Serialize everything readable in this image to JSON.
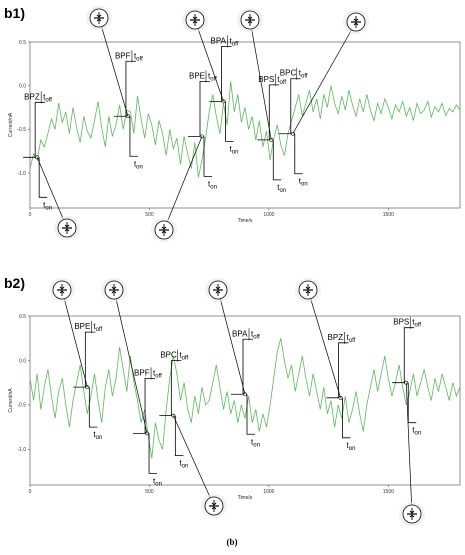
{
  "figure_caption": "(b)",
  "chart_data": [
    {
      "type": "line",
      "panel_label": "b1)",
      "xlabel": "Time/s",
      "ylabel": "Current/nA",
      "xlim": [
        0,
        1800
      ],
      "ylim": [
        -1.4,
        0.5
      ],
      "xticks": [
        0,
        500,
        1000,
        1500
      ],
      "yticks": [
        0.5,
        0.0,
        -0.5,
        -1.0
      ],
      "xtick_labels": [
        "0",
        "500",
        "1000",
        "1500"
      ],
      "ytick_labels": [
        "0.5",
        "0.0",
        "-0.5",
        "-1.0"
      ],
      "line_color": "#5cb85c",
      "series": [
        {
          "x": [
            0,
            15,
            30,
            45,
            60,
            75,
            90,
            105,
            120,
            135,
            150,
            165,
            180,
            195,
            210,
            225,
            240,
            255,
            270,
            285,
            300,
            315,
            330,
            345,
            360,
            375,
            390,
            405,
            420,
            435,
            450,
            465,
            480,
            495,
            510,
            525,
            540,
            555,
            570,
            585,
            600,
            615,
            630,
            645,
            660,
            675,
            690,
            705,
            720,
            735,
            750,
            765,
            780,
            795,
            810,
            825,
            840,
            855,
            870,
            885,
            900,
            915,
            930,
            945,
            960,
            975,
            990,
            1005,
            1020,
            1035,
            1050,
            1065,
            1080,
            1095,
            1110,
            1125,
            1140,
            1155,
            1170,
            1185,
            1200,
            1215,
            1230,
            1245,
            1260,
            1275,
            1290,
            1305,
            1320,
            1335,
            1350,
            1365,
            1380,
            1395,
            1410,
            1425,
            1440,
            1455,
            1470,
            1485,
            1500,
            1515,
            1530,
            1545,
            1560,
            1575,
            1590,
            1605,
            1620,
            1635,
            1650,
            1665,
            1680,
            1695,
            1710,
            1725,
            1740,
            1755,
            1770,
            1785,
            1800
          ],
          "y": [
            -0.95,
            -0.78,
            -0.85,
            -0.62,
            -0.7,
            -0.55,
            -0.38,
            -0.5,
            -0.2,
            -0.42,
            -0.3,
            -0.55,
            -0.25,
            -0.48,
            -0.65,
            -0.35,
            -0.52,
            -0.6,
            -0.4,
            -0.18,
            -0.48,
            -0.7,
            -0.35,
            -0.58,
            -0.45,
            -0.22,
            -0.5,
            -0.28,
            -0.3,
            -0.55,
            -0.12,
            -0.38,
            -0.6,
            -0.32,
            -0.45,
            -0.68,
            -0.4,
            -0.55,
            -0.8,
            -0.5,
            -0.72,
            -0.6,
            -0.9,
            -0.58,
            -0.78,
            -0.95,
            -0.65,
            -1.05,
            -0.85,
            -0.6,
            -0.3,
            -0.1,
            -0.35,
            -0.55,
            -0.2,
            -0.45,
            0.05,
            -0.3,
            -0.1,
            -0.42,
            -0.25,
            -0.5,
            -0.35,
            -0.62,
            -0.4,
            -0.7,
            -0.52,
            -0.85,
            -0.6,
            -0.45,
            -0.68,
            -0.8,
            -0.55,
            -0.4,
            -0.25,
            -0.1,
            -0.35,
            -0.2,
            -0.05,
            -0.3,
            -0.15,
            -0.38,
            -0.1,
            -0.25,
            0.0,
            -0.2,
            -0.32,
            -0.12,
            -0.28,
            -0.05,
            -0.22,
            -0.35,
            -0.15,
            -0.3,
            -0.1,
            -0.28,
            -0.4,
            -0.2,
            -0.32,
            -0.15,
            -0.25,
            -0.38,
            -0.22,
            -0.3,
            -0.18,
            -0.35,
            -0.25,
            -0.4,
            -0.2,
            -0.32,
            -0.28,
            -0.18,
            -0.36,
            -0.24,
            -0.3,
            -0.2,
            -0.34,
            -0.26,
            -0.3,
            -0.22,
            -0.28
          ]
        }
      ],
      "annotations": [
        {
          "tf": "BPZ",
          "t_off": "off",
          "t_on": "on",
          "x": 30,
          "y": -0.82,
          "t_on_x": 30,
          "t_off_x": 30
        },
        {
          "tf": "BPF",
          "t_off": "off",
          "t_on": "on",
          "x": 410,
          "y": -0.35,
          "t_on_x": 410,
          "t_off_x": 410
        },
        {
          "tf": "BPE",
          "t_off": "off",
          "t_on": "on",
          "x": 720,
          "y": -0.58,
          "t_on_x": 760,
          "t_off_x": 720
        },
        {
          "tf": "BPA",
          "t_off": "off",
          "t_on": "on",
          "x": 810,
          "y": -0.18,
          "t_on_x": 810,
          "t_off_x": 810
        },
        {
          "tf": "BPS",
          "t_off": "off",
          "t_on": "on",
          "x": 1010,
          "y": -0.62,
          "t_on_x": 1030,
          "t_off_x": 1010
        },
        {
          "tf": "BPC",
          "t_off": "off",
          "t_on": "on",
          "x": 1100,
          "y": -0.55,
          "t_on_x": 1110,
          "t_off_x": 1100
        }
      ]
    },
    {
      "type": "line",
      "panel_label": "b2)",
      "xlabel": "Time/s",
      "ylabel": "Current/nA",
      "xlim": [
        0,
        1800
      ],
      "ylim": [
        -1.4,
        0.5
      ],
      "xticks": [
        0,
        500,
        1000,
        1500
      ],
      "yticks": [
        0.5,
        0.0,
        -0.5,
        -1.0
      ],
      "xtick_labels": [
        "0",
        "500",
        "1000",
        "1500"
      ],
      "ytick_labels": [
        "0.5",
        "0.0",
        "-0.5",
        "-1.0"
      ],
      "line_color": "#5cb85c",
      "series": [
        {
          "x": [
            0,
            15,
            30,
            45,
            60,
            75,
            90,
            105,
            120,
            135,
            150,
            165,
            180,
            195,
            210,
            225,
            240,
            255,
            270,
            285,
            300,
            315,
            330,
            345,
            360,
            375,
            390,
            405,
            420,
            435,
            450,
            465,
            480,
            495,
            510,
            525,
            540,
            555,
            570,
            585,
            600,
            615,
            630,
            645,
            660,
            675,
            690,
            705,
            720,
            735,
            750,
            765,
            780,
            795,
            810,
            825,
            840,
            855,
            870,
            885,
            900,
            915,
            930,
            945,
            960,
            975,
            990,
            1005,
            1020,
            1035,
            1050,
            1065,
            1080,
            1095,
            1110,
            1125,
            1140,
            1155,
            1170,
            1185,
            1200,
            1215,
            1230,
            1245,
            1260,
            1275,
            1290,
            1305,
            1320,
            1335,
            1350,
            1365,
            1380,
            1395,
            1410,
            1425,
            1440,
            1455,
            1470,
            1485,
            1500,
            1515,
            1530,
            1545,
            1560,
            1575,
            1590,
            1605,
            1620,
            1635,
            1650,
            1665,
            1680,
            1695,
            1710,
            1725,
            1740,
            1755,
            1770,
            1785,
            1800
          ],
          "y": [
            -0.2,
            -0.45,
            -0.15,
            -0.55,
            -0.3,
            -0.1,
            -0.4,
            -0.65,
            -0.35,
            -0.2,
            -0.5,
            -0.75,
            -0.45,
            -0.25,
            -0.05,
            -0.35,
            -0.6,
            -0.4,
            -0.15,
            -0.45,
            -0.7,
            -0.3,
            -0.1,
            -0.4,
            -0.2,
            0.15,
            -0.1,
            -0.35,
            0.05,
            -0.25,
            -0.45,
            -0.7,
            -0.55,
            -0.85,
            -1.1,
            -0.7,
            -0.9,
            -1.0,
            -0.55,
            -0.2,
            0.05,
            -0.15,
            -0.45,
            -0.25,
            -0.55,
            -0.7,
            -0.4,
            -0.6,
            -0.3,
            -0.5,
            -0.45,
            -0.25,
            -0.05,
            -0.3,
            -0.55,
            -0.35,
            -0.6,
            -0.45,
            -0.7,
            -0.5,
            -0.65,
            -0.4,
            -0.7,
            -0.55,
            -0.8,
            -0.6,
            -0.75,
            -0.5,
            -0.2,
            0.1,
            0.25,
            0.0,
            -0.2,
            -0.05,
            -0.35,
            -0.15,
            0.05,
            -0.2,
            -0.4,
            -0.15,
            -0.35,
            -0.55,
            -0.3,
            -0.6,
            -0.45,
            -0.75,
            -0.5,
            -0.65,
            -0.4,
            -0.7,
            -0.55,
            -0.35,
            -0.6,
            -0.8,
            -0.5,
            -0.3,
            -0.1,
            -0.35,
            -0.15,
            0.05,
            -0.2,
            -0.4,
            -0.25,
            -0.05,
            -0.3,
            -0.5,
            -0.35,
            -0.15,
            -0.4,
            -0.25,
            -0.1,
            -0.3,
            -0.45,
            -0.2,
            -0.35,
            -0.15,
            -0.3,
            -0.45,
            -0.25,
            -0.4,
            -0.3
          ]
        }
      ],
      "annotations": [
        {
          "tf": "BPE",
          "t_off": "off",
          "t_on": "on",
          "x": 240,
          "y": -0.3,
          "t_on_x": 240,
          "t_off_x": 240
        },
        {
          "tf": "BPF",
          "t_off": "off",
          "t_on": "on",
          "x": 490,
          "y": -0.82,
          "t_on_x": 490,
          "t_off_x": 490
        },
        {
          "tf": "BPC",
          "t_off": "off",
          "t_on": "on",
          "x": 600,
          "y": -0.62,
          "t_on_x": 600,
          "t_off_x": 600
        },
        {
          "tf": "BPA",
          "t_off": "off",
          "t_on": "on",
          "x": 900,
          "y": -0.38,
          "t_on_x": 900,
          "t_off_x": 900
        },
        {
          "tf": "BPZ",
          "t_off": "off",
          "t_on": "on",
          "x": 1300,
          "y": -0.42,
          "t_on_x": 1300,
          "t_off_x": 1300
        },
        {
          "tf": "BPS",
          "t_off": "off",
          "t_on": "on",
          "x": 1575,
          "y": -0.25,
          "t_on_x": 1575,
          "t_off_x": 1575
        }
      ]
    }
  ]
}
